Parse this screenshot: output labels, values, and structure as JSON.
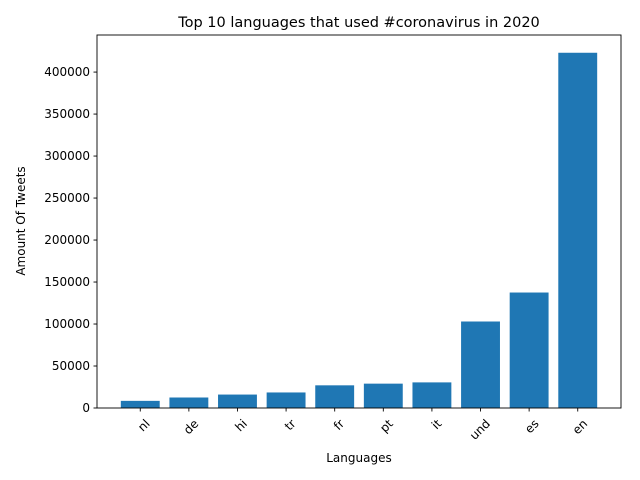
{
  "chart_data": {
    "type": "bar",
    "title": "Top 10 languages that used #coronavirus in 2020",
    "xlabel": "Languages",
    "ylabel": "Amount Of Tweets",
    "categories": [
      "nl",
      "de",
      "hi",
      "tr",
      "fr",
      "pt",
      "it",
      "und",
      "es",
      "en"
    ],
    "values": [
      8500,
      12500,
      16000,
      18500,
      27000,
      29000,
      30500,
      103000,
      137500,
      423000
    ],
    "ylim": [
      0,
      444150
    ],
    "yticks": [
      0,
      50000,
      100000,
      150000,
      200000,
      250000,
      300000,
      350000,
      400000
    ],
    "xtick_rotation": 45,
    "grid": false,
    "bar_color": "#1f77b4"
  }
}
